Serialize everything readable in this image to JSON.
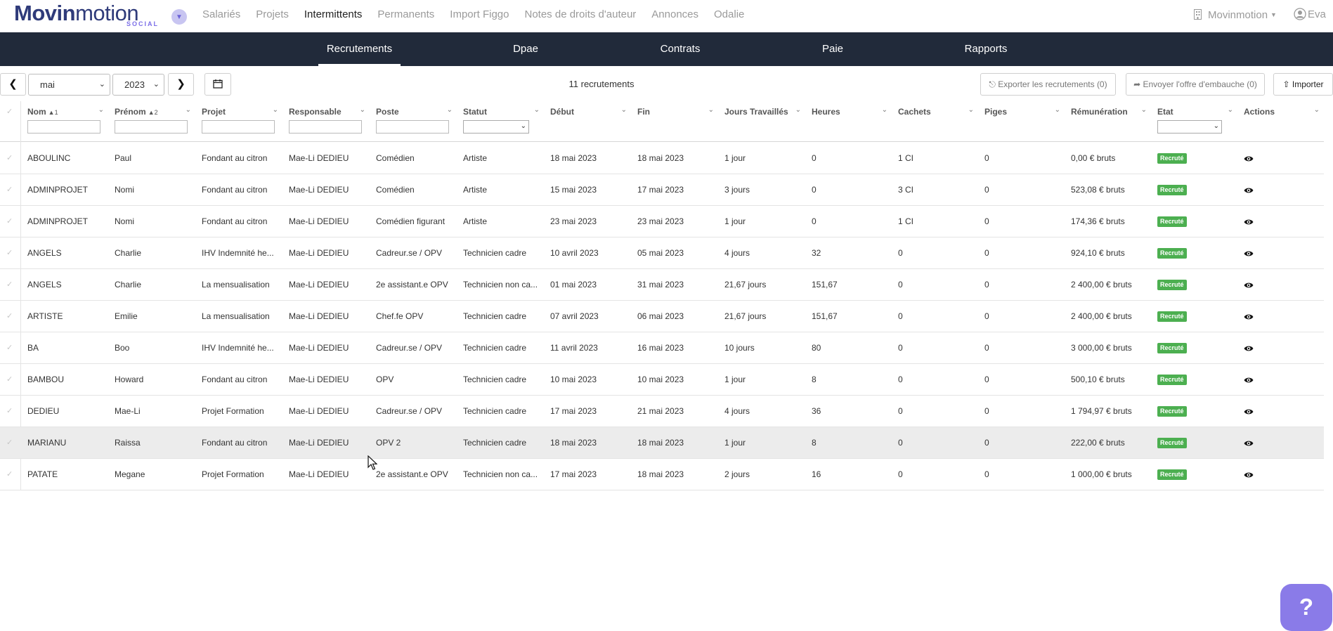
{
  "brand": {
    "bold": "Movin",
    "light": "motion",
    "sub": "SOCIAL"
  },
  "nav": {
    "items": [
      "Salariés",
      "Projets",
      "Intermittents",
      "Permanents",
      "Import Figgo",
      "Notes de droits d'auteur",
      "Annonces",
      "Odalie"
    ],
    "active": "Intermittents",
    "company": "Movinmotion",
    "user": "Eva"
  },
  "tabs": [
    "Recrutements",
    "Dpae",
    "Contrats",
    "Paie",
    "Rapports"
  ],
  "toolbar": {
    "month": "mai",
    "year": "2023",
    "count": "11 recrutements",
    "export_label": "Exporter les recrutements (0)",
    "send_label": "Envoyer l'offre d'embauche (0)",
    "import_label": "Importer"
  },
  "columns": [
    "Nom",
    "Prénom",
    "Projet",
    "Responsable",
    "Poste",
    "Statut",
    "Début",
    "Fin",
    "Jours Travaillés",
    "Heures",
    "Cachets",
    "Piges",
    "Rémunération",
    "Etat",
    "Actions"
  ],
  "sort_markers": {
    "nom": "1",
    "prenom": "2"
  },
  "rows": [
    [
      "ABOULINC",
      "Paul",
      "Fondant au citron",
      "Mae-Li DEDIEU",
      "Comédien",
      "Artiste",
      "18 mai 2023",
      "18 mai 2023",
      "1 jour",
      "0",
      "1 CI",
      "0",
      "0,00 € bruts",
      "Recruté"
    ],
    [
      "ADMINPROJET",
      "Nomi",
      "Fondant au citron",
      "Mae-Li DEDIEU",
      "Comédien",
      "Artiste",
      "15 mai 2023",
      "17 mai 2023",
      "3 jours",
      "0",
      "3 CI",
      "0",
      "523,08 € bruts",
      "Recruté"
    ],
    [
      "ADMINPROJET",
      "Nomi",
      "Fondant au citron",
      "Mae-Li DEDIEU",
      "Comédien figurant",
      "Artiste",
      "23 mai 2023",
      "23 mai 2023",
      "1 jour",
      "0",
      "1 CI",
      "0",
      "174,36 € bruts",
      "Recruté"
    ],
    [
      "ANGELS",
      "Charlie",
      "IHV Indemnité he...",
      "Mae-Li DEDIEU",
      "Cadreur.se / OPV",
      "Technicien cadre",
      "10 avril 2023",
      "05 mai 2023",
      "4 jours",
      "32",
      "0",
      "0",
      "924,10 € bruts",
      "Recruté"
    ],
    [
      "ANGELS",
      "Charlie",
      "La mensualisation",
      "Mae-Li DEDIEU",
      "2e assistant.e OPV",
      "Technicien non ca...",
      "01 mai 2023",
      "31 mai 2023",
      "21,67 jours",
      "151,67",
      "0",
      "0",
      "2 400,00 € bruts",
      "Recruté"
    ],
    [
      "ARTISTE",
      "Emilie",
      "La mensualisation",
      "Mae-Li DEDIEU",
      "Chef.fe OPV",
      "Technicien cadre",
      "07 avril 2023",
      "06 mai 2023",
      "21,67 jours",
      "151,67",
      "0",
      "0",
      "2 400,00 € bruts",
      "Recruté"
    ],
    [
      "BA",
      "Boo",
      "IHV Indemnité he...",
      "Mae-Li DEDIEU",
      "Cadreur.se / OPV",
      "Technicien cadre",
      "11 avril 2023",
      "16 mai 2023",
      "10 jours",
      "80",
      "0",
      "0",
      "3 000,00 € bruts",
      "Recruté"
    ],
    [
      "BAMBOU",
      "Howard",
      "Fondant au citron",
      "Mae-Li DEDIEU",
      "OPV",
      "Technicien cadre",
      "10 mai 2023",
      "10 mai 2023",
      "1 jour",
      "8",
      "0",
      "0",
      "500,10 € bruts",
      "Recruté"
    ],
    [
      "DEDIEU",
      "Mae-Li",
      "Projet Formation",
      "Mae-Li DEDIEU",
      "Cadreur.se / OPV",
      "Technicien cadre",
      "17 mai 2023",
      "21 mai 2023",
      "4 jours",
      "36",
      "0",
      "0",
      "1 794,97 € bruts",
      "Recruté"
    ],
    [
      "MARIANU",
      "Raissa",
      "Fondant au citron",
      "Mae-Li DEDIEU",
      "OPV 2",
      "Technicien cadre",
      "18 mai 2023",
      "18 mai 2023",
      "1 jour",
      "8",
      "0",
      "0",
      "222,00 € bruts",
      "Recruté"
    ],
    [
      "PATATE",
      "Megane",
      "Projet Formation",
      "Mae-Li DEDIEU",
      "2e assistant.e OPV",
      "Technicien non ca...",
      "17 mai 2023",
      "18 mai 2023",
      "2 jours",
      "16",
      "0",
      "0",
      "1 000,00 € bruts",
      "Recruté"
    ]
  ],
  "highlighted_row": 9,
  "help_label": "?",
  "colors": {
    "tabbar": "#212a3a",
    "badge": "#4caf50",
    "brand": "#2f3b7a",
    "help": "#8a7be8"
  },
  "icons": [
    "chevron-left-icon",
    "chevron-right-icon",
    "calendar-icon",
    "export-icon",
    "send-icon",
    "import-icon",
    "eye-icon",
    "building-icon",
    "user-icon",
    "check-icon"
  ]
}
